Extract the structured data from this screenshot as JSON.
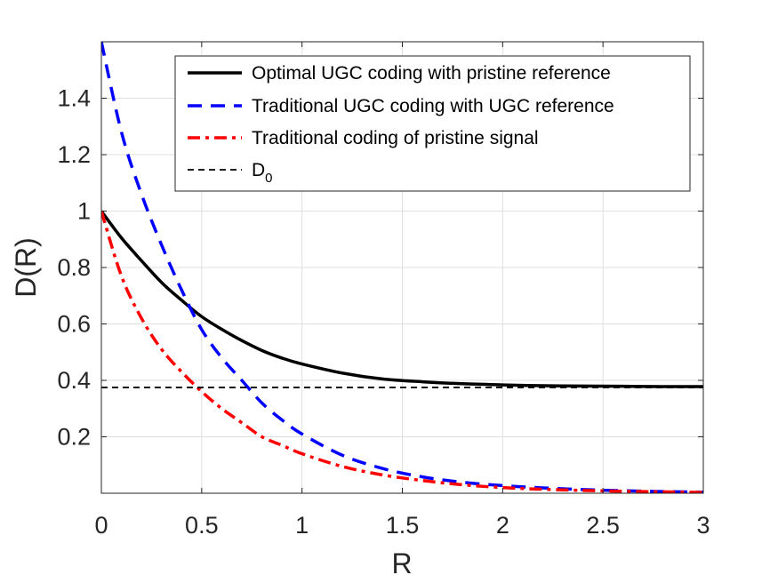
{
  "chart_data": {
    "type": "line",
    "xlabel": "R",
    "ylabel": "D(R)",
    "xlim": [
      0,
      3
    ],
    "ylim": [
      0,
      1.6
    ],
    "xticks": [
      0,
      0.5,
      1,
      1.5,
      2,
      2.5,
      3
    ],
    "xtick_labels": [
      "0",
      "0.5",
      "1",
      "1.5",
      "2",
      "2.5",
      "3"
    ],
    "yticks": [
      0.2,
      0.4,
      0.6,
      0.8,
      1.0,
      1.2,
      1.4
    ],
    "ytick_labels": [
      "0.2",
      "0.4",
      "0.6",
      "0.8",
      "1",
      "1.2",
      "1.4"
    ],
    "grid": true,
    "legend": {
      "position": "top-right",
      "entries": [
        {
          "label": "Optimal UGC coding with pristine reference",
          "subscript": ""
        },
        {
          "label": "Traditional UGC coding with UGC reference",
          "subscript": ""
        },
        {
          "label": "Traditional coding of pristine signal",
          "subscript": ""
        },
        {
          "label": "D",
          "subscript": "0"
        }
      ]
    },
    "series": [
      {
        "color": "#000000",
        "style": "solid",
        "x": [
          0,
          0.1,
          0.2,
          0.3,
          0.4,
          0.5,
          0.6,
          0.7,
          0.8,
          0.9,
          1.0,
          1.2,
          1.4,
          1.6,
          1.8,
          2.0,
          2.2,
          2.4,
          2.6,
          2.8,
          3.0
        ],
        "y": [
          1.0,
          0.905,
          0.824,
          0.747,
          0.684,
          0.626,
          0.581,
          0.541,
          0.506,
          0.479,
          0.458,
          0.426,
          0.405,
          0.395,
          0.388,
          0.384,
          0.381,
          0.38,
          0.379,
          0.378,
          0.378
        ]
      },
      {
        "color": "#0000ff",
        "style": "dashed",
        "x": [
          0,
          0.1,
          0.2,
          0.3,
          0.4,
          0.5,
          0.6,
          0.7,
          0.8,
          0.9,
          1.0,
          1.2,
          1.4,
          1.6,
          1.8,
          2.0,
          2.2,
          2.4,
          2.6,
          2.8,
          3.0
        ],
        "y": [
          1.6,
          1.28,
          1.06,
          0.88,
          0.72,
          0.58,
          0.48,
          0.4,
          0.32,
          0.26,
          0.21,
          0.135,
          0.088,
          0.058,
          0.039,
          0.027,
          0.019,
          0.013,
          0.009,
          0.006,
          0.004
        ]
      },
      {
        "color": "#ff0000",
        "style": "dashdot",
        "x": [
          0,
          0.1,
          0.2,
          0.3,
          0.4,
          0.5,
          0.6,
          0.7,
          0.8,
          0.9,
          1.0,
          1.2,
          1.4,
          1.6,
          1.8,
          2.0,
          2.2,
          2.4,
          2.6,
          2.8,
          3.0
        ],
        "y": [
          1.0,
          0.77,
          0.62,
          0.51,
          0.43,
          0.36,
          0.3,
          0.25,
          0.2,
          0.17,
          0.14,
          0.095,
          0.065,
          0.045,
          0.03,
          0.02,
          0.014,
          0.01,
          0.007,
          0.005,
          0.003
        ]
      },
      {
        "color": "#000000",
        "style": "dotted-dash",
        "x": [
          0,
          3.0
        ],
        "y": [
          0.375,
          0.375
        ]
      }
    ]
  }
}
